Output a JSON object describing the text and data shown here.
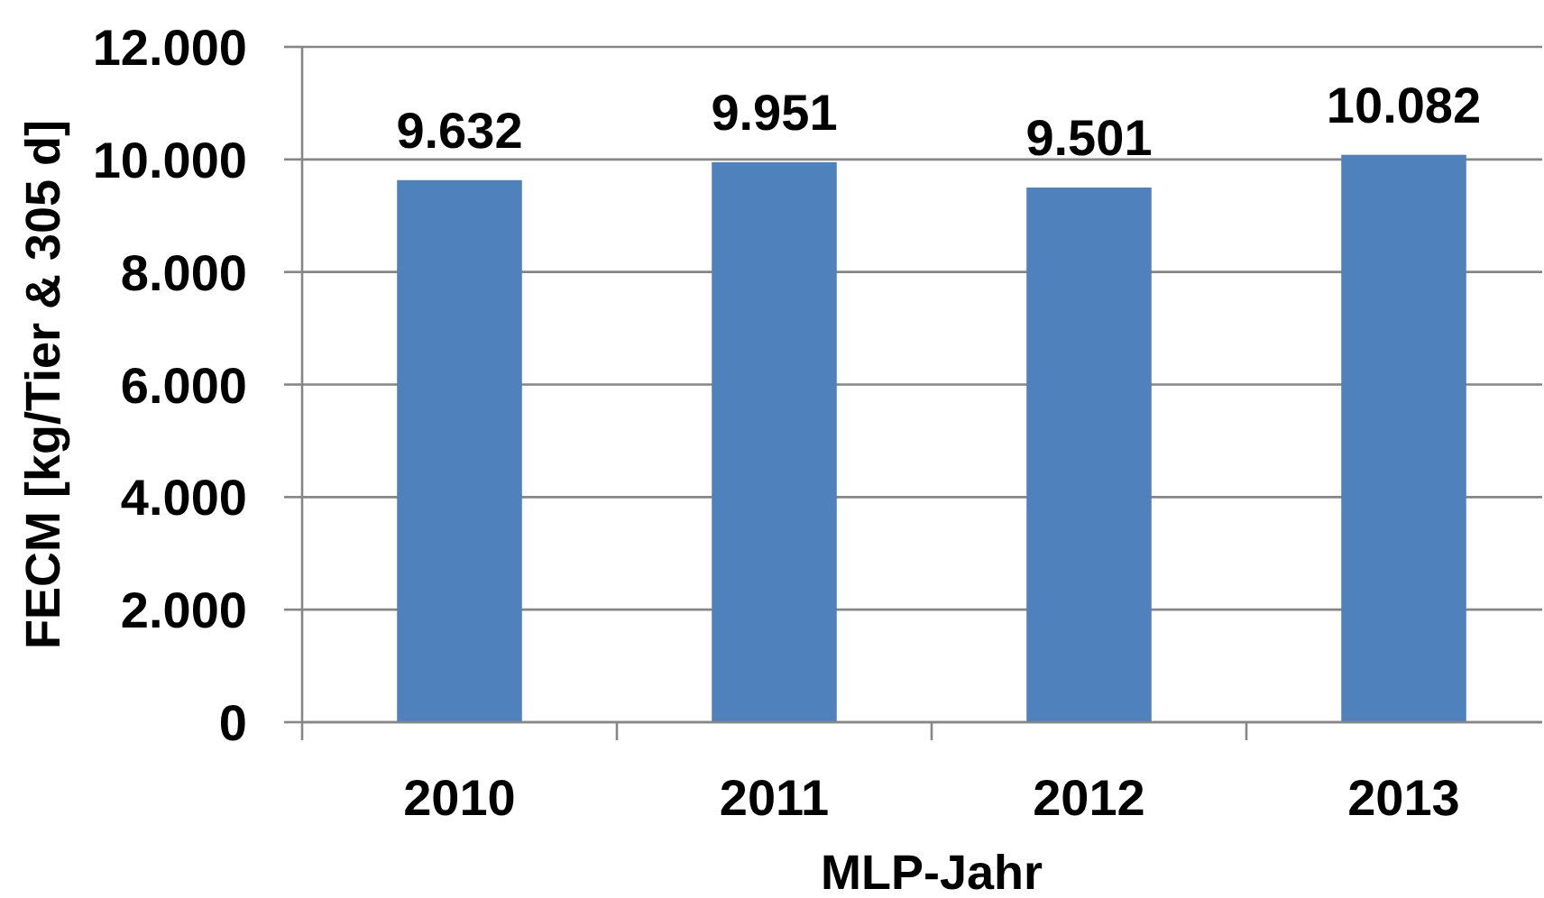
{
  "chart_data": {
    "type": "bar",
    "xlabel": "MLP-Jahr",
    "ylabel": "FECM [kg/Tier & 305 d]",
    "categories": [
      "2010",
      "2011",
      "2012",
      "2013"
    ],
    "values": [
      9632,
      9951,
      9501,
      10082
    ],
    "value_labels": [
      "9.632",
      "9.951",
      "9.501",
      "10.082"
    ],
    "color": "#4f81bd",
    "ylim": [
      0,
      12000
    ],
    "yticks": [
      0,
      {
        "value": 2000,
        "label": "2.000"
      },
      {
        "value": 4000,
        "label": "4.000"
      },
      {
        "value": 6000,
        "label": "6.000"
      },
      {
        "value": 8000,
        "label": "8.000"
      },
      {
        "value": 10000,
        "label": "10.000"
      },
      {
        "value": 12000,
        "label": "12.000"
      }
    ],
    "grid": "y"
  }
}
